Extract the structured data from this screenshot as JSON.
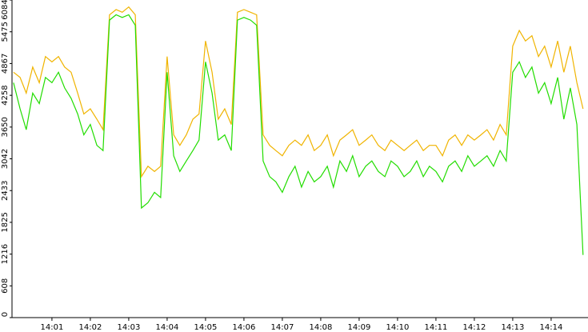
{
  "chart_data": {
    "type": "line",
    "x": [
      840.0,
      840.17,
      840.33,
      840.5,
      840.67,
      840.83,
      841.0,
      841.17,
      841.33,
      841.5,
      841.67,
      841.83,
      842.0,
      842.17,
      842.33,
      842.5,
      842.67,
      842.83,
      843.0,
      843.17,
      843.33,
      843.5,
      843.67,
      843.83,
      844.0,
      844.17,
      844.33,
      844.5,
      844.67,
      844.83,
      845.0,
      845.17,
      845.33,
      845.5,
      845.67,
      845.83,
      846.0,
      846.17,
      846.33,
      846.5,
      846.67,
      846.83,
      847.0,
      847.17,
      847.33,
      847.5,
      847.67,
      847.83,
      848.0,
      848.17,
      848.33,
      848.5,
      848.67,
      848.83,
      849.0,
      849.17,
      849.33,
      849.5,
      849.67,
      849.83,
      850.0,
      850.17,
      850.33,
      850.5,
      850.67,
      850.83,
      851.0,
      851.17,
      851.33,
      851.5,
      851.67,
      851.83,
      852.0,
      852.17,
      852.33,
      852.5,
      852.67,
      852.83,
      853.0,
      853.17,
      853.33,
      853.5,
      853.67,
      853.83,
      854.0,
      854.17,
      854.33,
      854.5,
      854.67,
      854.83
    ],
    "series": [
      {
        "color": "#f0b400",
        "values": [
          4700,
          4600,
          4300,
          4800,
          4500,
          5000,
          4900,
          5000,
          4800,
          4700,
          4300,
          3900,
          4000,
          3800,
          3600,
          5800,
          5900,
          5850,
          5950,
          5800,
          2700,
          2900,
          2800,
          2900,
          5000,
          3500,
          3300,
          3500,
          3800,
          3900,
          5300,
          4700,
          3800,
          4000,
          3700,
          5850,
          5900,
          5850,
          5800,
          3500,
          3300,
          3200,
          3100,
          3300,
          3400,
          3300,
          3500,
          3200,
          3300,
          3500,
          3100,
          3400,
          3500,
          3600,
          3300,
          3400,
          3500,
          3300,
          3200,
          3400,
          3300,
          3200,
          3300,
          3400,
          3200,
          3300,
          3300,
          3100,
          3400,
          3500,
          3300,
          3500,
          3400,
          3500,
          3600,
          3400,
          3700,
          3500,
          5200,
          5500,
          5300,
          5400,
          5000,
          5200,
          4800,
          5300,
          4700,
          5200,
          4500,
          4000
        ]
      },
      {
        "color": "#22dd00",
        "values": [
          4500,
          4000,
          3600,
          4300,
          4100,
          4600,
          4500,
          4700,
          4400,
          4200,
          3900,
          3500,
          3700,
          3300,
          3200,
          5700,
          5800,
          5750,
          5800,
          5600,
          2100,
          2200,
          2400,
          2300,
          4700,
          3100,
          2800,
          3000,
          3200,
          3400,
          4900,
          4300,
          3400,
          3500,
          3200,
          5700,
          5750,
          5700,
          5600,
          3000,
          2700,
          2600,
          2400,
          2700,
          2900,
          2500,
          2800,
          2600,
          2700,
          2900,
          2500,
          3000,
          2800,
          3100,
          2700,
          2900,
          3000,
          2800,
          2700,
          3000,
          2900,
          2700,
          2800,
          3000,
          2700,
          2900,
          2800,
          2600,
          2900,
          3000,
          2800,
          3100,
          2900,
          3000,
          3100,
          2900,
          3200,
          3000,
          4700,
          4900,
          4600,
          4800,
          4300,
          4500,
          4100,
          4600,
          3800,
          4400,
          3700,
          1200
        ]
      }
    ],
    "xlim": [
      839.96,
      854.96
    ],
    "xticks": [
      {
        "value": 841,
        "label": "14:01"
      },
      {
        "value": 842,
        "label": "14:02"
      },
      {
        "value": 843,
        "label": "14:03"
      },
      {
        "value": 844,
        "label": "14:04"
      },
      {
        "value": 845,
        "label": "14:05"
      },
      {
        "value": 846,
        "label": "14:06"
      },
      {
        "value": 847,
        "label": "14:07"
      },
      {
        "value": 848,
        "label": "14:08"
      },
      {
        "value": 849,
        "label": "14:09"
      },
      {
        "value": 850,
        "label": "14:10"
      },
      {
        "value": 851,
        "label": "14:11"
      },
      {
        "value": 852,
        "label": "14:12"
      },
      {
        "value": 853,
        "label": "14:13"
      },
      {
        "value": 854,
        "label": "14:14"
      }
    ],
    "ylim": [
      0,
      6084
    ],
    "yticks": [
      0,
      608,
      1216,
      1825,
      2433,
      3042,
      3650,
      4258,
      4867,
      5475,
      6084
    ]
  }
}
